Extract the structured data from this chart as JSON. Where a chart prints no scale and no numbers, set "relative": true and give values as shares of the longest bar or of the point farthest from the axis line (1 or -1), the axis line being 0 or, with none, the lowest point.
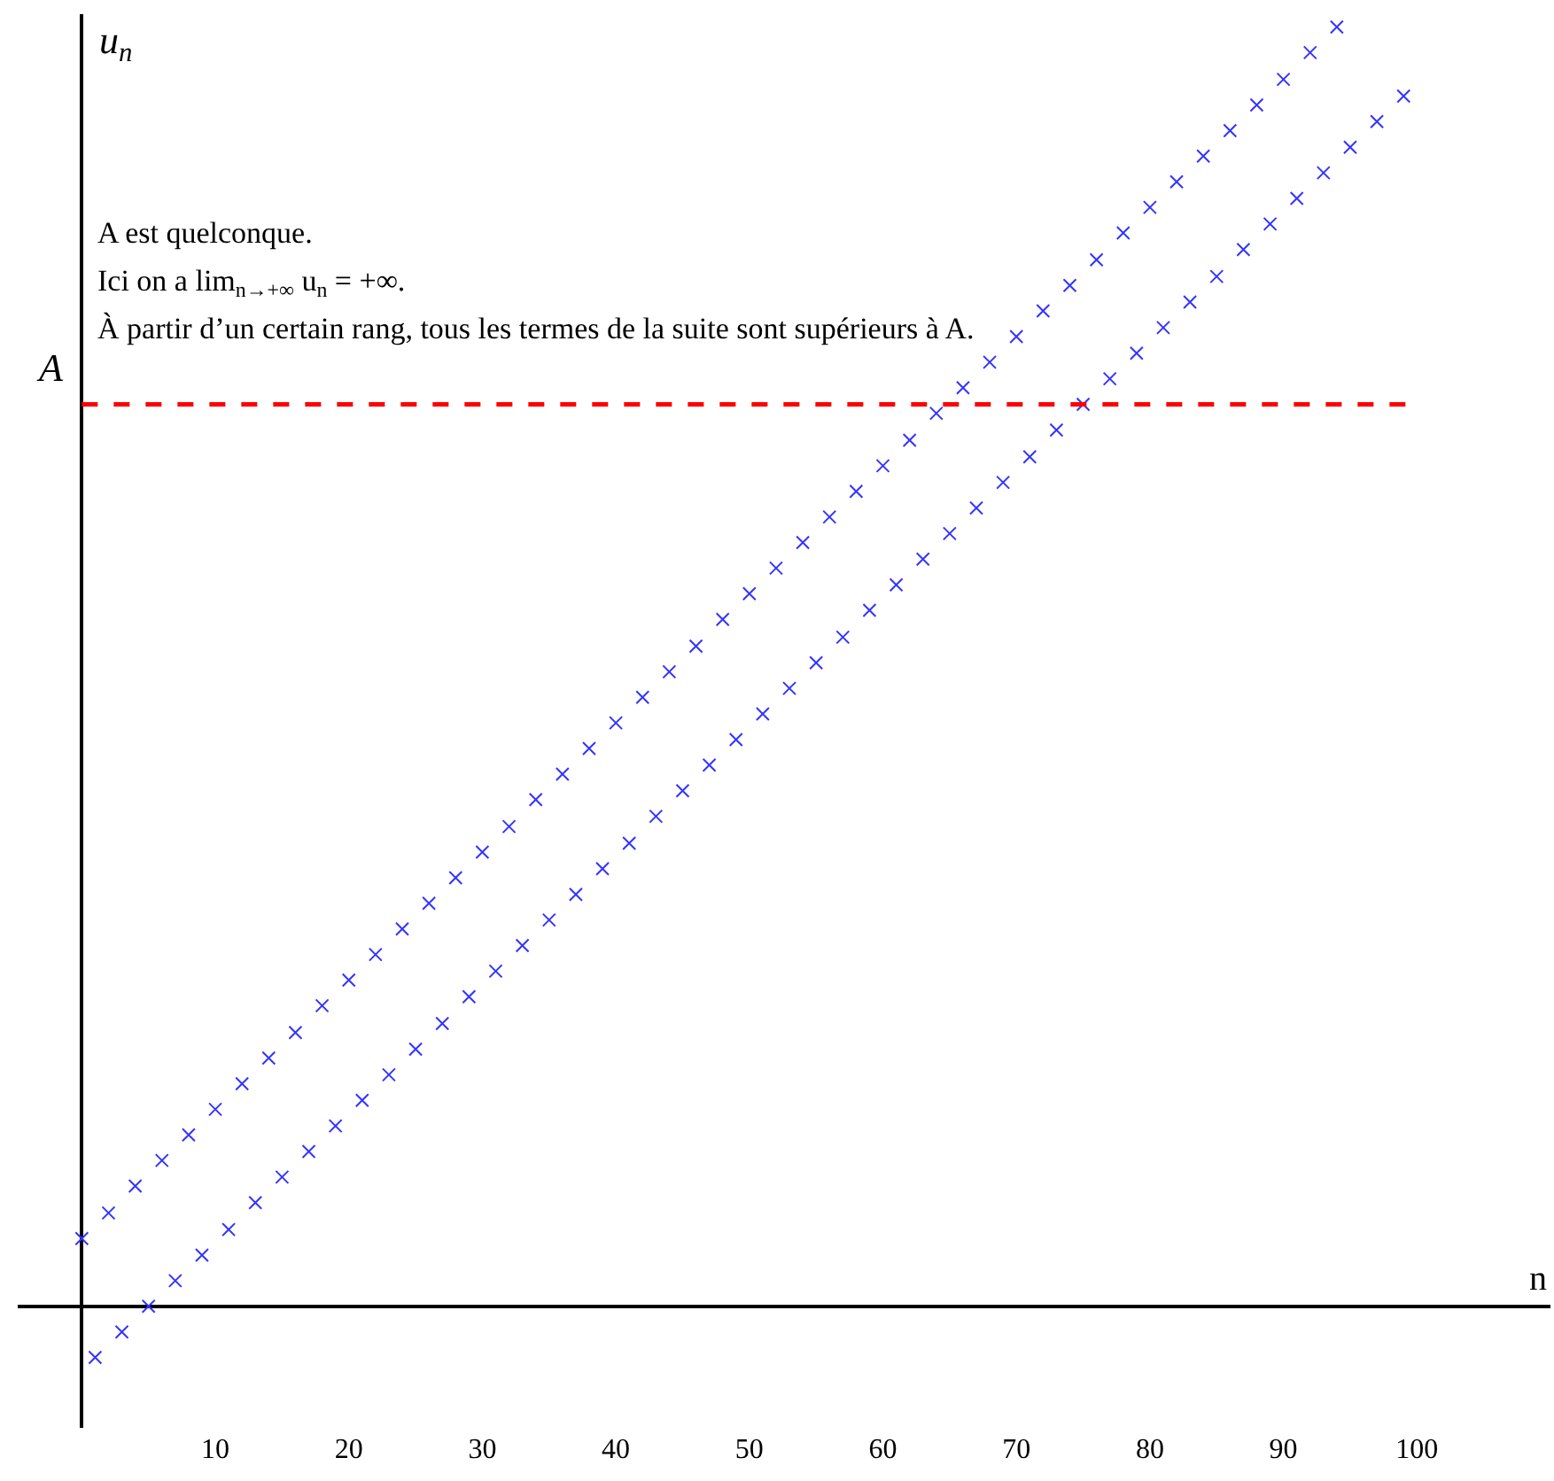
{
  "chart_data": {
    "type": "scatter",
    "relative": true,
    "xlabel": "n",
    "ylabel": "u$_{n}$",
    "xlim": [
      -4.8,
      110
    ],
    "xticks": [
      10,
      20,
      30,
      40,
      50,
      60,
      70,
      80,
      90,
      100
    ],
    "marker": "cross",
    "annotations": [
      "A est quelconque.",
      "Ici on a lim$_{n→+∞}$ u$_{n}$ = +∞.",
      "À partir d’un certain rang, tous les termes de la suite sont supérieurs à A."
    ],
    "ref_lines": [
      {
        "axis": "y",
        "value": 0.705,
        "label": "A",
        "color": "#ff0000",
        "line_style": "dashed"
      }
    ],
    "series": [
      {
        "color": "#3333ff",
        "x": [
          0,
          2,
          4,
          6,
          8,
          10,
          12,
          14,
          16,
          18,
          20,
          22,
          24,
          26,
          28,
          30,
          32,
          34,
          36,
          38,
          40,
          42,
          44,
          46,
          48,
          50,
          52,
          54,
          56,
          58,
          60,
          62,
          64,
          66,
          68,
          70,
          72,
          74,
          76,
          78,
          80,
          82,
          84,
          86,
          88,
          90,
          92,
          94
        ],
        "values": [
          0.053,
          0.073,
          0.094,
          0.114,
          0.134,
          0.154,
          0.174,
          0.194,
          0.214,
          0.235,
          0.255,
          0.275,
          0.295,
          0.315,
          0.335,
          0.355,
          0.375,
          0.396,
          0.416,
          0.436,
          0.456,
          0.476,
          0.496,
          0.516,
          0.537,
          0.557,
          0.577,
          0.597,
          0.617,
          0.637,
          0.657,
          0.677,
          0.698,
          0.718,
          0.738,
          0.758,
          0.778,
          0.798,
          0.818,
          0.839,
          0.859,
          0.879,
          0.899,
          0.919,
          0.939,
          0.959,
          0.98,
          1.0
        ]
      },
      {
        "color": "#3333ff",
        "x": [
          1,
          3,
          5,
          7,
          9,
          11,
          13,
          15,
          17,
          19,
          21,
          23,
          25,
          27,
          29,
          31,
          33,
          35,
          37,
          39,
          41,
          43,
          45,
          47,
          49,
          51,
          53,
          55,
          57,
          59,
          61,
          63,
          65,
          67,
          69,
          71,
          73,
          75,
          77,
          79,
          81,
          83,
          85,
          87,
          89,
          91,
          93,
          95,
          97,
          99
        ],
        "values": [
          -0.04,
          -0.02,
          0,
          0.02,
          0.04,
          0.06,
          0.081,
          0.101,
          0.121,
          0.141,
          0.161,
          0.181,
          0.201,
          0.221,
          0.242,
          0.262,
          0.282,
          0.302,
          0.322,
          0.342,
          0.362,
          0.383,
          0.403,
          0.423,
          0.443,
          0.463,
          0.483,
          0.503,
          0.523,
          0.544,
          0.564,
          0.584,
          0.604,
          0.624,
          0.644,
          0.664,
          0.685,
          0.705,
          0.725,
          0.745,
          0.765,
          0.785,
          0.805,
          0.826,
          0.846,
          0.866,
          0.886,
          0.906,
          0.926,
          0.946
        ]
      }
    ]
  }
}
